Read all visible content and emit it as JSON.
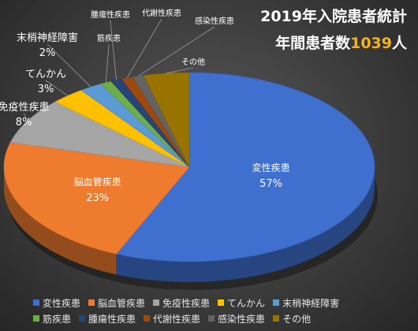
{
  "chart_data": {
    "type": "pie",
    "title_line1": "2019年入院患者統計",
    "title_line2_prefix": "年間患者数",
    "title_line2_number": "1039",
    "title_line2_suffix": "人",
    "slices": [
      {
        "name": "変性疾患",
        "value": 57,
        "label": "57%",
        "color": "#3f6fcf"
      },
      {
        "name": "脳血管疾患",
        "value": 23,
        "label": "23%",
        "color": "#ef7b2e"
      },
      {
        "name": "免疫性疾患",
        "value": 8,
        "label": "8%",
        "color": "#a5a5a5"
      },
      {
        "name": "てんかん",
        "value": 3,
        "label": "3%",
        "color": "#ffc000"
      },
      {
        "name": "末梢神経障害",
        "value": 2,
        "label": "2%",
        "color": "#5b9bd5"
      },
      {
        "name": "筋疾患",
        "value": 1,
        "label": "",
        "color": "#70ad47"
      },
      {
        "name": "腫瘍性疾患",
        "value": 1,
        "label": "",
        "color": "#264478"
      },
      {
        "name": "代謝性疾患",
        "value": 1,
        "label": "",
        "color": "#9e480e"
      },
      {
        "name": "感染性疾患",
        "value": 1,
        "label": "",
        "color": "#636363"
      },
      {
        "name": "その他",
        "value": 4,
        "label": "",
        "color": "#997300"
      }
    ]
  }
}
